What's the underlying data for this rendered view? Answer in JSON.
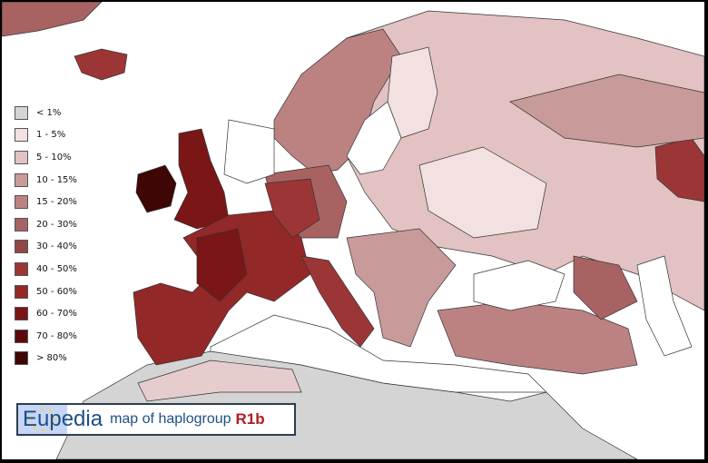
{
  "title": {
    "brand": "Eupedia",
    "subtitle": "map of haplogroup",
    "haplogroup": "R1b",
    "brand_color": "#1d4f87",
    "haplogroup_color": "#b01c22"
  },
  "legend": {
    "items": [
      {
        "label": "< 1%",
        "color": "#d4d4d4"
      },
      {
        "label": "1 - 5%",
        "color": "#f3e0e0"
      },
      {
        "label": "5 - 10%",
        "color": "#e2c2c2"
      },
      {
        "label": "10 - 15%",
        "color": "#c99a9a"
      },
      {
        "label": "15 - 20%",
        "color": "#bc8282"
      },
      {
        "label": "20 - 30%",
        "color": "#a96262"
      },
      {
        "label": "30 - 40%",
        "color": "#8f4646"
      },
      {
        "label": "40 - 50%",
        "color": "#9c3636"
      },
      {
        "label": "50 - 60%",
        "color": "#932828"
      },
      {
        "label": "60 - 70%",
        "color": "#7b1616"
      },
      {
        "label": "70 - 80%",
        "color": "#5b0b0b"
      },
      {
        "label": "> 80%",
        "color": "#3f0606"
      }
    ]
  },
  "colors": {
    "sea": "#ffffff",
    "frame": "#000000",
    "border_lines": "#222222"
  }
}
